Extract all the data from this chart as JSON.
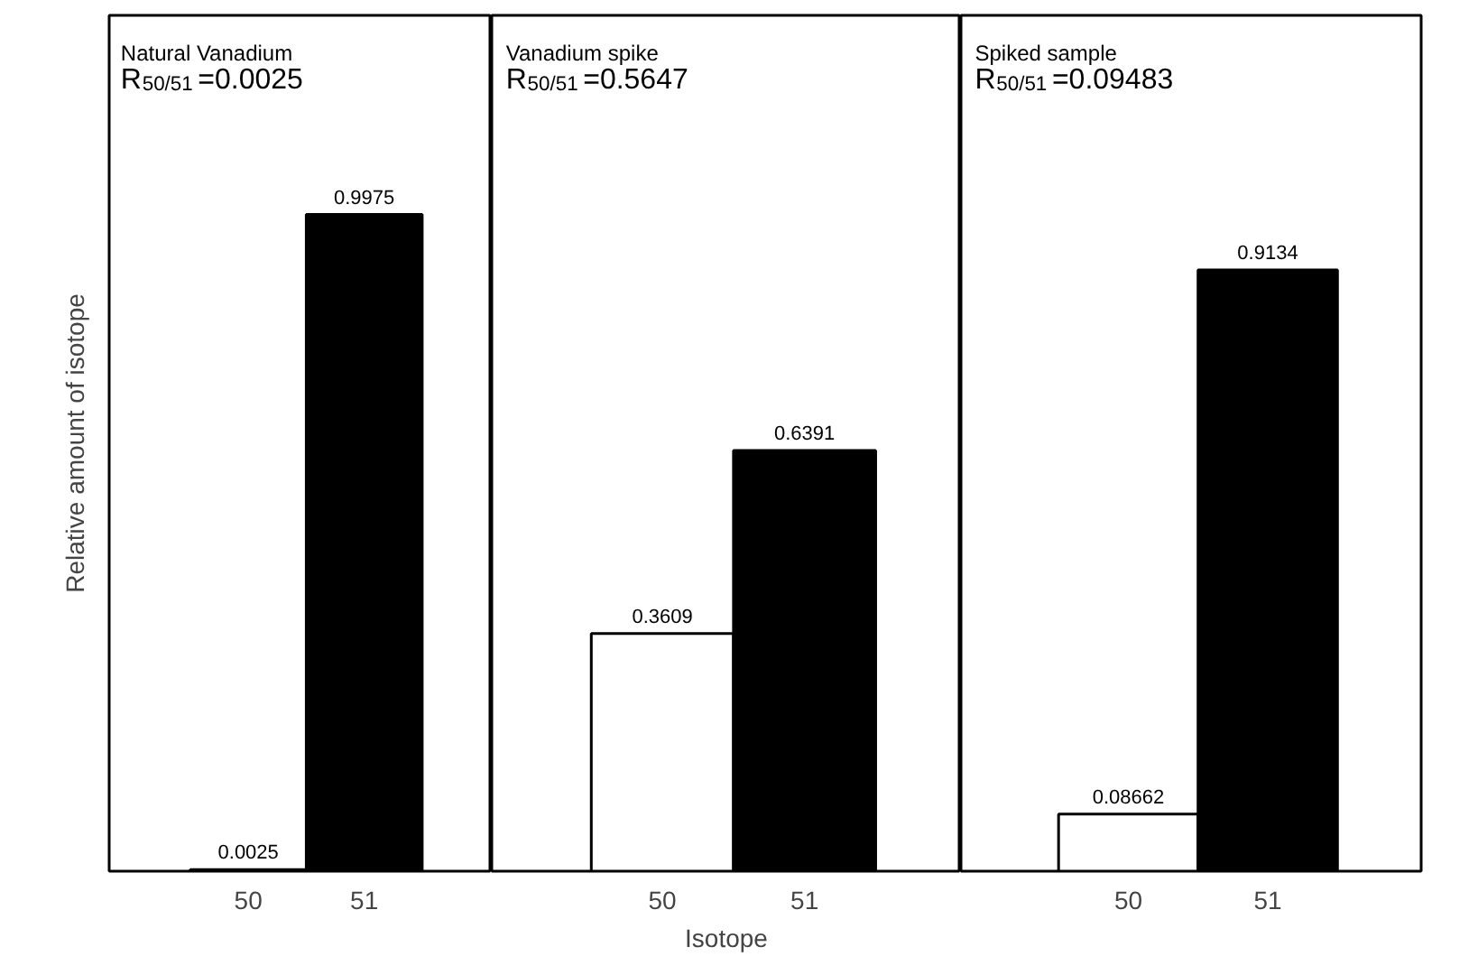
{
  "chart_data": [
    {
      "type": "bar",
      "title": "Natural Vanadium",
      "subtitle": "R$_{50/51}$=0.0025",
      "ylabel": "Relative amount of isotope",
      "categories": [
        "50",
        "51"
      ],
      "values": [
        0.0025,
        0.9975
      ],
      "colors": [
        "#ffffff",
        "#000000"
      ],
      "data_labels": true,
      "ylim": [
        0,
        1.3
      ],
      "tick_labels": "x",
      "grid": false
    },
    {
      "type": "bar",
      "title": "Vanadium spike",
      "subtitle": "R$_{50/51}$=0.5647",
      "xlabel": "Isotope",
      "categories": [
        "50",
        "51"
      ],
      "values": [
        0.3609,
        0.6391
      ],
      "colors": [
        "#ffffff",
        "#000000"
      ],
      "data_labels": true,
      "ylim": [
        0,
        1.3
      ],
      "tick_labels": "x",
      "grid": false
    },
    {
      "type": "bar",
      "title": "Spiked sample",
      "subtitle": "R$_{50/51}$=0.09483",
      "categories": [
        "50",
        "51"
      ],
      "values": [
        0.08662,
        0.9134
      ],
      "colors": [
        "#ffffff",
        "#000000"
      ],
      "data_labels": true,
      "ylim": [
        0,
        1.3
      ],
      "tick_labels": "x",
      "grid": false
    }
  ]
}
